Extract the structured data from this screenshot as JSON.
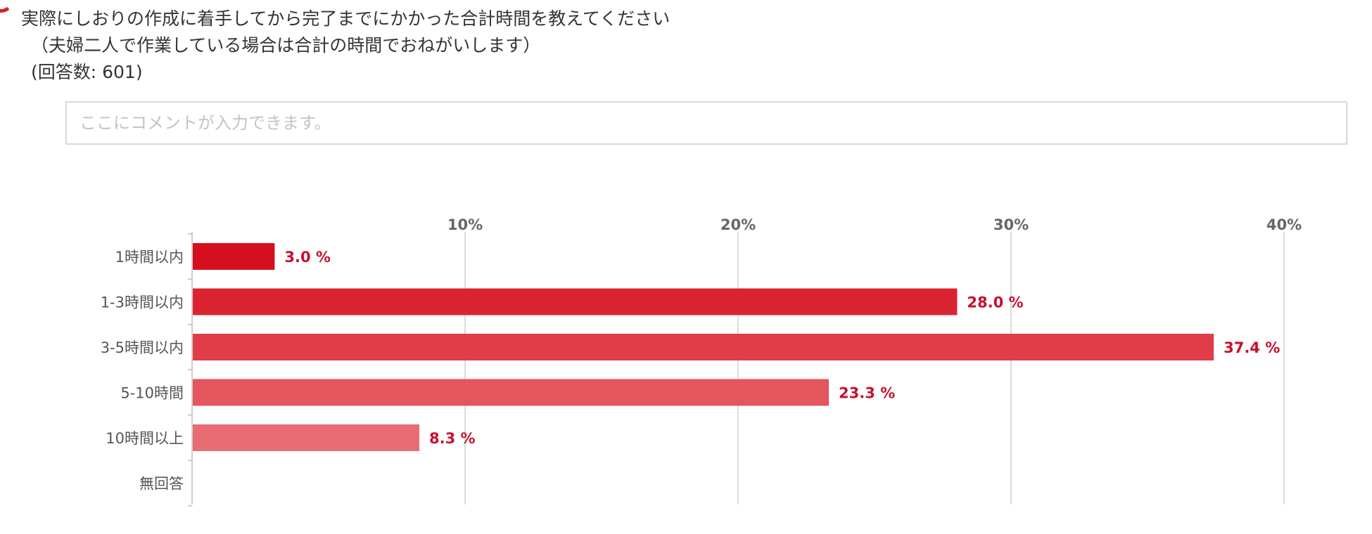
{
  "question": {
    "line1": "実際にしおりの作成に着手してから完了までにかかった合計時間を教えてください",
    "line2": "（夫婦二人で作業している場合は合計の時間でおねがいします）",
    "line3": "(回答数: 601)"
  },
  "comment": {
    "placeholder": "ここにコメントが入力できます。"
  },
  "colors": {
    "accent": "#d81f2a",
    "label_red": "#c8102e",
    "bars": [
      "#d60f1e",
      "#db2431",
      "#e03d48",
      "#e4555e",
      "#e86c73",
      "#eb8086"
    ]
  },
  "chart_data": {
    "type": "bar",
    "orientation": "horizontal",
    "categories": [
      "1時間以内",
      "1-3時間以内",
      "3-5時間以内",
      "5-10時間",
      "10時間以上",
      "無回答"
    ],
    "values": [
      3.0,
      28.0,
      37.4,
      23.3,
      8.3,
      null
    ],
    "value_labels": [
      "3.0 %",
      "28.0 %",
      "37.4 %",
      "23.3 %",
      "8.3 %",
      ""
    ],
    "xlim": [
      0,
      40
    ],
    "ticks": [
      10,
      20,
      30,
      40
    ],
    "tick_labels": [
      "10%",
      "20%",
      "30%",
      "40%"
    ],
    "axis_position": "top",
    "grid": true
  }
}
